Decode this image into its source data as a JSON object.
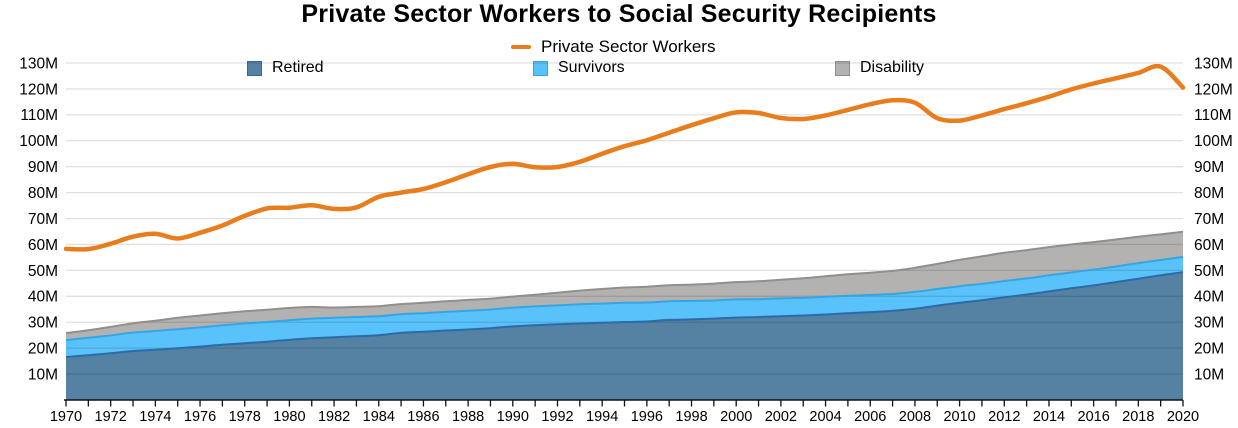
{
  "title": "Private Sector Workers to Social Security Recipients",
  "legend": {
    "line_series": "Private Sector Workers",
    "area_series": [
      "Retired",
      "Survivors",
      "Disability"
    ]
  },
  "colors": {
    "line": "#E87D1E",
    "retired_fill": "#5581A3",
    "retired_edge": "#2B6CA8",
    "survivors_fill": "#59C2FA",
    "survivors_edge": "#35A6E4",
    "disability_fill": "#B3B2B0",
    "disability_edge": "#908F8D",
    "gridline": "rgba(0,0,0,0.12)",
    "axis": "#111111"
  },
  "chart_data": {
    "type": "line+stacked_area",
    "title": "Private Sector Workers to Social Security Recipients",
    "unit": "millions of people",
    "ylim": [
      0,
      135
    ],
    "grid": true,
    "legend_position": "top-center",
    "x_years": [
      1970,
      1971,
      1972,
      1973,
      1974,
      1975,
      1976,
      1977,
      1978,
      1979,
      1980,
      1981,
      1982,
      1983,
      1984,
      1985,
      1986,
      1987,
      1988,
      1989,
      1990,
      1991,
      1992,
      1993,
      1994,
      1995,
      1996,
      1997,
      1998,
      1999,
      2000,
      2001,
      2002,
      2003,
      2004,
      2005,
      2006,
      2007,
      2008,
      2009,
      2010,
      2011,
      2012,
      2013,
      2014,
      2015,
      2016,
      2017,
      2018,
      2019,
      2020
    ],
    "x_tick_labels": [
      "1970",
      "1972",
      "1974",
      "1976",
      "1978",
      "1980",
      "1982",
      "1984",
      "1986",
      "1988",
      "1990",
      "1992",
      "1994",
      "1996",
      "1998",
      "2000",
      "2002",
      "2004",
      "2006",
      "2008",
      "2010",
      "2012",
      "2014",
      "2016",
      "2018",
      "2020"
    ],
    "y_tick_labels": [
      "10M",
      "20M",
      "30M",
      "40M",
      "50M",
      "60M",
      "70M",
      "80M",
      "90M",
      "100M",
      "110M",
      "120M",
      "130M"
    ],
    "series": [
      {
        "name": "Private Sector Workers",
        "type": "line",
        "color": "#E87D1E",
        "values": [
          58.3,
          58.2,
          60.3,
          63.0,
          64.1,
          62.3,
          64.5,
          67.3,
          71.0,
          73.9,
          74.2,
          75.1,
          73.7,
          74.3,
          78.4,
          80.0,
          81.4,
          84.0,
          87.1,
          89.9,
          91.1,
          89.8,
          89.9,
          91.9,
          95.0,
          97.9,
          100.2,
          103.1,
          106.0,
          108.7,
          111.0,
          110.7,
          108.8,
          108.4,
          109.8,
          111.9,
          114.1,
          115.6,
          114.7,
          108.7,
          107.8,
          109.8,
          112.2,
          114.5,
          117.0,
          119.8,
          122.1,
          124.1,
          126.2,
          128.6,
          120.5
        ]
      },
      {
        "name": "Retired",
        "type": "area",
        "color": "#5581A3",
        "edge": "#2B6CA8",
        "values": [
          16.6,
          17.3,
          18.0,
          18.9,
          19.4,
          20.0,
          20.6,
          21.3,
          21.9,
          22.5,
          23.2,
          23.8,
          24.2,
          24.6,
          25.0,
          25.9,
          26.3,
          26.8,
          27.2,
          27.7,
          28.4,
          28.8,
          29.2,
          29.5,
          29.8,
          30.1,
          30.3,
          30.9,
          31.1,
          31.4,
          31.8,
          32.0,
          32.3,
          32.6,
          33.0,
          33.5,
          33.9,
          34.4,
          35.2,
          36.4,
          37.5,
          38.5,
          39.6,
          40.7,
          41.9,
          43.1,
          44.2,
          45.5,
          46.8,
          48.1,
          49.3
        ]
      },
      {
        "name": "Survivors",
        "type": "area",
        "color": "#59C2FA",
        "edge": "#35A6E4",
        "values": [
          6.5,
          6.7,
          6.9,
          7.1,
          7.2,
          7.3,
          7.4,
          7.5,
          7.6,
          7.6,
          7.6,
          7.6,
          7.5,
          7.4,
          7.3,
          7.2,
          7.2,
          7.2,
          7.2,
          7.2,
          7.2,
          7.3,
          7.3,
          7.4,
          7.4,
          7.4,
          7.3,
          7.2,
          7.1,
          7.0,
          7.0,
          6.9,
          6.9,
          6.8,
          6.8,
          6.7,
          6.6,
          6.5,
          6.5,
          6.4,
          6.4,
          6.3,
          6.3,
          6.2,
          6.2,
          6.1,
          6.1,
          6.0,
          6.0,
          5.9,
          5.9
        ]
      },
      {
        "name": "Disability",
        "type": "area",
        "color": "#B3B2B0",
        "edge": "#908F8D",
        "values": [
          2.7,
          2.9,
          3.3,
          3.6,
          4.0,
          4.4,
          4.6,
          4.7,
          4.7,
          4.7,
          4.7,
          4.5,
          4.0,
          3.9,
          3.9,
          3.9,
          4.0,
          4.1,
          4.2,
          4.2,
          4.3,
          4.5,
          4.9,
          5.3,
          5.6,
          5.9,
          6.1,
          6.2,
          6.3,
          6.5,
          6.7,
          6.9,
          7.2,
          7.6,
          7.9,
          8.3,
          8.6,
          8.9,
          9.3,
          9.7,
          10.2,
          10.6,
          10.9,
          10.9,
          10.9,
          10.8,
          10.6,
          10.4,
          10.2,
          9.9,
          9.7
        ]
      }
    ]
  }
}
